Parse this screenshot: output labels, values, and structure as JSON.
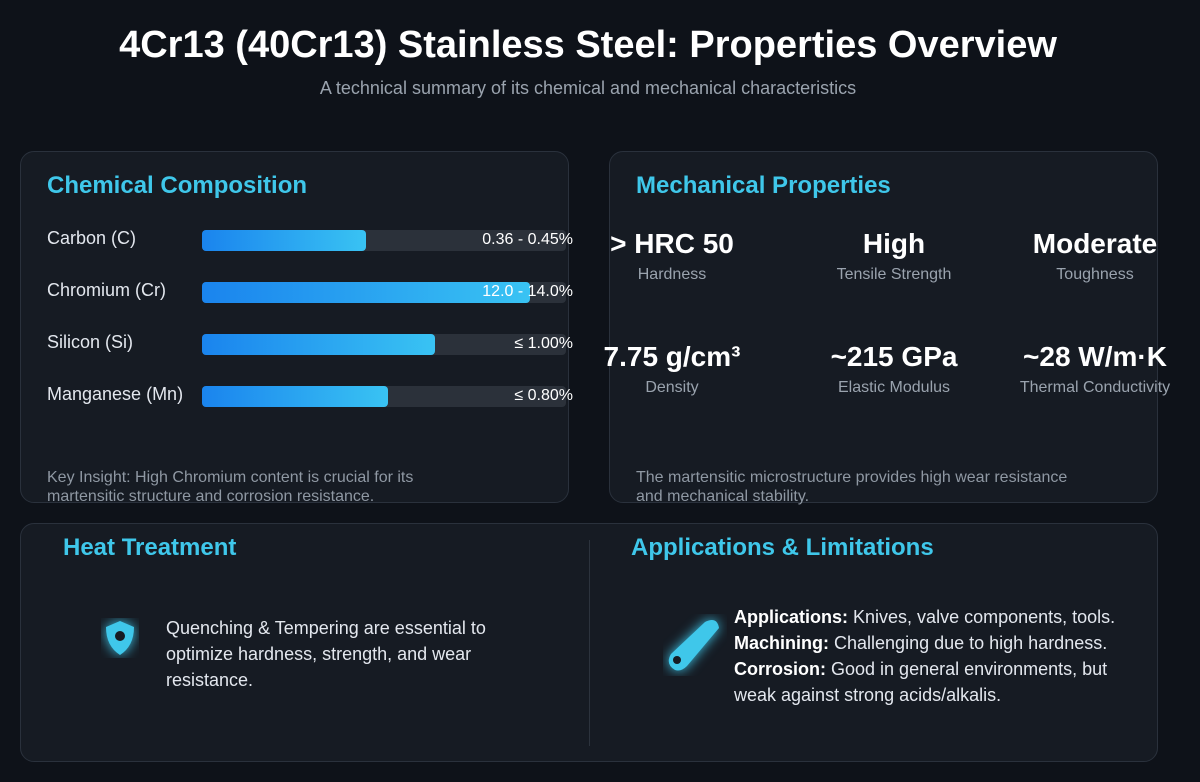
{
  "header": {
    "title": "4Cr13 (40Cr13) Stainless Steel: Properties Overview",
    "subtitle": "A technical summary of its chemical and mechanical characteristics"
  },
  "composition": {
    "heading": "Chemical Composition",
    "xlim": [
      0,
      100
    ],
    "items": [
      {
        "element": "Carbon (C)",
        "range": "0.36 - 0.45%",
        "fill": 45
      },
      {
        "element": "Chromium (Cr)",
        "range": "12.0 - 14.0%",
        "fill": 90
      },
      {
        "element": "Silicon (Si)",
        "range": "≤ 1.00%",
        "fill": 64
      },
      {
        "element": "Manganese (Mn)",
        "range": "≤ 0.80%",
        "fill": 51
      }
    ],
    "insight": "Key Insight: High Chromium content is crucial for its martensitic structure and corrosion resistance."
  },
  "mechanical": {
    "heading": "Mechanical Properties",
    "properties": [
      {
        "value": "> HRC 50",
        "label": "Hardness"
      },
      {
        "value": "High",
        "label": "Tensile Strength"
      },
      {
        "value": "Moderate",
        "label": "Toughness"
      },
      {
        "value": "7.75 g/cm³",
        "label": "Density"
      },
      {
        "value": "~215 GPa",
        "label": "Elastic Modulus"
      },
      {
        "value": "~28 W/m·K",
        "label": "Thermal Conductivity"
      }
    ],
    "note": "The martensitic microstructure provides high wear resistance and mechanical stability."
  },
  "heat_treatment": {
    "heading": "Heat Treatment",
    "text": "Quenching & Tempering are essential to optimize hardness, strength, and wear resistance."
  },
  "applications": {
    "heading": "Applications & Limitations",
    "items": [
      {
        "term": "Applications:",
        "text": "Knives, valve components, tools."
      },
      {
        "term": "Machining:",
        "text": "Challenging due to high hardness."
      },
      {
        "term": "Corrosion:",
        "text": "Good in general environments, but weak against strong acids/alkalis."
      }
    ]
  }
}
